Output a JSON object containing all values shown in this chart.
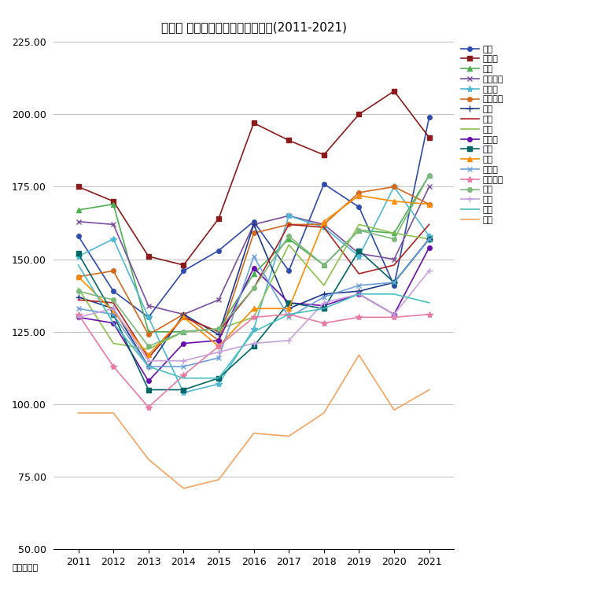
{
  "title": "葛飾区 マンション坤単価０年変遷(2011-2021)",
  "xlabel_unit": "単位：万円",
  "years": [
    2011,
    2012,
    2013,
    2014,
    2015,
    2016,
    2017,
    2018,
    2019,
    2020,
    2021
  ],
  "ylim": [
    50.0,
    225.0
  ],
  "yticks": [
    50.0,
    75.0,
    100.0,
    125.0,
    150.0,
    175.0,
    200.0,
    225.0
  ],
  "series": [
    {
      "name": "亀有",
      "color": "#2E4BAE",
      "marker": "o",
      "values": [
        158,
        139,
        130,
        146,
        153,
        163,
        146,
        176,
        168,
        141,
        199
      ]
    },
    {
      "name": "新小岩",
      "color": "#8B1A1A",
      "marker": "s",
      "values": [
        175,
        170,
        151,
        148,
        164,
        197,
        191,
        186,
        200,
        208,
        192
      ]
    },
    {
      "name": "金町",
      "color": "#4CAF50",
      "marker": "^",
      "values": [
        167,
        169,
        125,
        125,
        126,
        145,
        157,
        148,
        160,
        159,
        179
      ]
    },
    {
      "name": "東新小岩",
      "color": "#7B4EA0",
      "marker": "x",
      "values": [
        163,
        162,
        134,
        131,
        136,
        162,
        165,
        162,
        152,
        150,
        175
      ]
    },
    {
      "name": "東金町",
      "color": "#4DB8D4",
      "marker": "*",
      "values": [
        151,
        157,
        130,
        104,
        107,
        126,
        165,
        161,
        151,
        175,
        158
      ]
    },
    {
      "name": "西新小岩",
      "color": "#D2691E",
      "marker": "o",
      "values": [
        144,
        146,
        124,
        131,
        122,
        159,
        162,
        162,
        173,
        175,
        169
      ]
    },
    {
      "name": "立石",
      "color": "#1E3A8A",
      "marker": "+",
      "values": [
        137,
        133,
        113,
        131,
        124,
        162,
        133,
        138,
        139,
        142,
        157
      ]
    },
    {
      "name": "堀切",
      "color": "#B22222",
      "marker": "None",
      "values": [
        136,
        135,
        116,
        130,
        125,
        140,
        162,
        161,
        145,
        148,
        162
      ]
    },
    {
      "name": "高砂",
      "color": "#8BC34A",
      "marker": "None",
      "values": [
        140,
        121,
        119,
        125,
        126,
        130,
        155,
        141,
        162,
        159,
        157
      ]
    },
    {
      "name": "四つ木",
      "color": "#6A0DAD",
      "marker": "o",
      "values": [
        130,
        128,
        108,
        121,
        122,
        147,
        135,
        134,
        138,
        131,
        154
      ]
    },
    {
      "name": "宝町",
      "color": "#006666",
      "marker": "s",
      "values": [
        152,
        131,
        105,
        105,
        109,
        120,
        135,
        133,
        153,
        142,
        157
      ]
    },
    {
      "name": "白鳥",
      "color": "#FF8C00",
      "marker": "^",
      "values": [
        144,
        132,
        117,
        130,
        120,
        133,
        133,
        163,
        172,
        170,
        169
      ]
    },
    {
      "name": "東立石",
      "color": "#6CA0DC",
      "marker": "x",
      "values": [
        133,
        131,
        113,
        113,
        116,
        151,
        130,
        137,
        141,
        142,
        157
      ]
    },
    {
      "name": "東四つ木",
      "color": "#E87CA0",
      "marker": "*",
      "values": [
        131,
        113,
        99,
        110,
        120,
        130,
        131,
        128,
        130,
        130,
        131
      ]
    },
    {
      "name": "青戸",
      "color": "#7CB97C",
      "marker": "o",
      "values": [
        139,
        136,
        120,
        125,
        126,
        140,
        158,
        148,
        160,
        157,
        179
      ]
    },
    {
      "name": "奥戸",
      "color": "#C8A0DC",
      "marker": "+",
      "values": [
        130,
        133,
        115,
        115,
        118,
        121,
        122,
        135,
        138,
        131,
        146
      ]
    },
    {
      "name": "柴又",
      "color": "#48C0C0",
      "marker": "None",
      "values": [
        148,
        128,
        113,
        109,
        109,
        125,
        131,
        133,
        138,
        138,
        135
      ]
    },
    {
      "name": "水元",
      "color": "#F4A460",
      "marker": "None",
      "values": [
        97,
        97,
        81,
        71,
        74,
        90,
        89,
        97,
        117,
        98,
        105
      ]
    }
  ]
}
